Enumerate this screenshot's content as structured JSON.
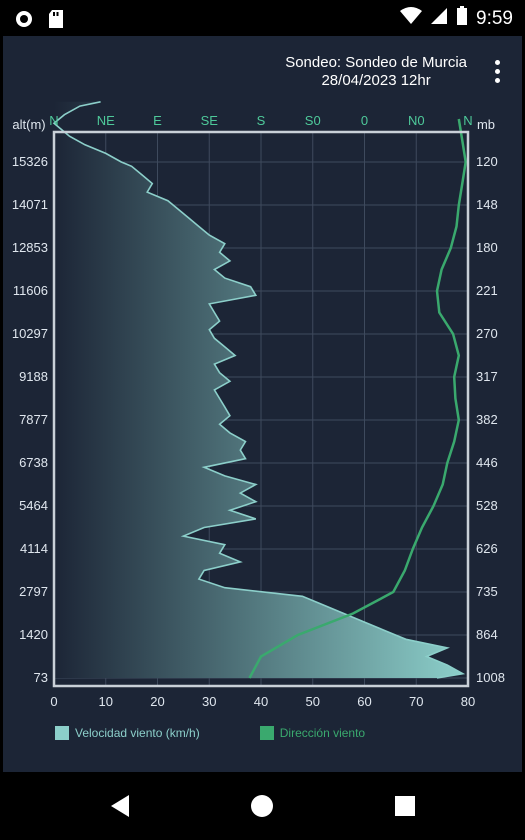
{
  "status_bar": {
    "time": "9:59"
  },
  "header": {
    "title_line1": "Sondeo: Sondeo de Murcia",
    "title_line2": "28/04/2023 12hr"
  },
  "colors": {
    "background": "#1c2536",
    "speed_fill": "#8ccfca",
    "direction_line": "#3aa96e",
    "axis_text": "#dfe6ee",
    "top_axis_text": "#4ec99a"
  },
  "chart_data": {
    "type": "line",
    "left_axis_title": "alt(m)",
    "right_axis_title": "mb",
    "altitude_ticks": [
      "15326",
      "14071",
      "12853",
      "11606",
      "10297",
      "9188",
      "7877",
      "6738",
      "5464",
      "4114",
      "2797",
      "1420",
      "73"
    ],
    "pressure_ticks": [
      "120",
      "148",
      "180",
      "221",
      "270",
      "317",
      "382",
      "446",
      "528",
      "626",
      "735",
      "864",
      "1008"
    ],
    "x_ticks": [
      "0",
      "10",
      "20",
      "30",
      "40",
      "50",
      "60",
      "70",
      "80"
    ],
    "x_range": [
      0,
      80
    ],
    "direction_ticks": [
      "N",
      "NE",
      "E",
      "SE",
      "S",
      "S0",
      "0",
      "N0",
      "N"
    ],
    "grid": true,
    "legend_position": "bottom",
    "series": [
      {
        "name": "Velocidad viento (km/h)",
        "altitude_index": [
          13.4,
          13.3,
          13.1,
          12.9,
          12.8,
          12.6,
          12.4,
          12.2,
          12.0,
          11.9,
          11.7,
          11.5,
          11.3,
          11.1,
          10.9,
          10.7,
          10.5,
          10.3,
          10.1,
          9.9,
          9.7,
          9.5,
          9.3,
          9.1,
          8.9,
          8.7,
          8.5,
          8.3,
          8.1,
          7.9,
          7.7,
          7.5,
          7.3,
          7.1,
          6.9,
          6.7,
          6.5,
          6.3,
          6.1,
          5.9,
          5.7,
          5.5,
          5.3,
          5.1,
          4.9,
          4.7,
          4.5,
          4.3,
          4.1,
          3.9,
          3.7,
          3.5,
          3.3,
          3.1,
          2.9,
          2.7,
          2.5,
          2.3,
          2.1,
          1.9,
          1.7,
          1.5,
          1.3,
          1.1,
          0.9,
          0.7,
          0.5,
          0.3,
          0.1,
          0.0
        ],
        "values": [
          9,
          5,
          2,
          0,
          1,
          3,
          6,
          10,
          13,
          15,
          17,
          19,
          18,
          22,
          24,
          26,
          28,
          30,
          33,
          32,
          34,
          31,
          33,
          38,
          39,
          30,
          31,
          32,
          30,
          31,
          33,
          35,
          31,
          32,
          34,
          31,
          32,
          33,
          34,
          32,
          34,
          37,
          36,
          37,
          29,
          33,
          39,
          36,
          39,
          34,
          39,
          29,
          25,
          33,
          32,
          36,
          29,
          28,
          33,
          48,
          52,
          56,
          60,
          64,
          68,
          76,
          72,
          76,
          79,
          74
        ]
      },
      {
        "name": "Dirección viento",
        "altitude_index": [
          0.0,
          0.5,
          1.0,
          1.5,
          2.0,
          2.5,
          3.0,
          3.5,
          4.0,
          4.5,
          5.0,
          5.5,
          6.0,
          6.5,
          7.0,
          7.5,
          8.0,
          8.5,
          9.0,
          9.5,
          10.0,
          10.5,
          11.0,
          11.5,
          12.0,
          12.5,
          13.0
        ],
        "values": [
          170,
          180,
          212,
          260,
          295,
          305,
          312,
          320,
          330,
          338,
          342,
          348,
          352,
          349,
          348,
          352,
          347,
          335,
          333,
          337,
          345,
          350,
          352,
          355,
          358,
          355,
          352
        ]
      }
    ]
  },
  "legend": {
    "speed_label": "Velocidad viento (km/h)",
    "direction_label": "Dirección viento"
  }
}
